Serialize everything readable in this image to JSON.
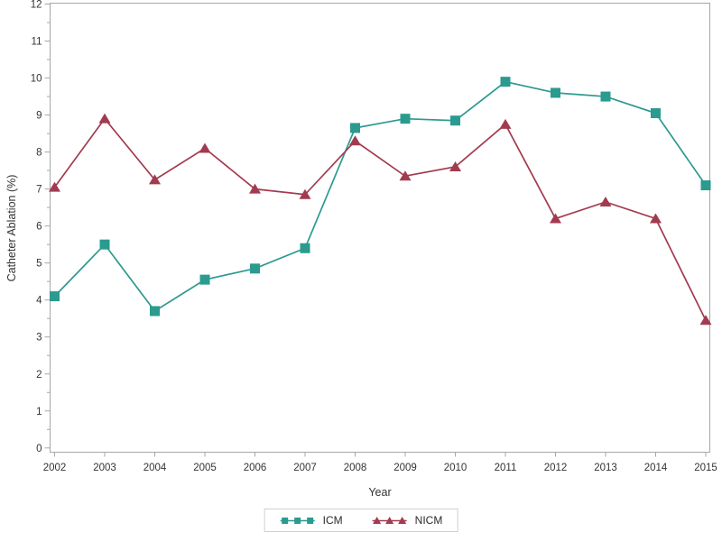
{
  "figure": {
    "background": "#ffffff"
  },
  "chart_data": {
    "type": "line",
    "title": "",
    "xlabel": "Year",
    "ylabel": "Catheter Ablation (%)",
    "x": [
      2002,
      2003,
      2004,
      2005,
      2006,
      2007,
      2008,
      2009,
      2010,
      2011,
      2012,
      2013,
      2014,
      2015
    ],
    "ylim": [
      0,
      12
    ],
    "yticks": [
      0,
      1,
      2,
      3,
      4,
      5,
      6,
      7,
      8,
      9,
      10,
      11,
      12
    ],
    "minor_ytick_interval": 0.5,
    "grid": false,
    "legend": {
      "position": "bottom-center",
      "entries": [
        "ICM",
        "NICM"
      ]
    },
    "series": [
      {
        "name": "ICM",
        "marker": "square",
        "color": "#2B9A8F",
        "values": [
          4.1,
          5.5,
          3.7,
          4.55,
          4.85,
          5.4,
          8.65,
          8.9,
          8.85,
          9.9,
          9.6,
          9.5,
          9.05,
          7.1
        ]
      },
      {
        "name": "NICM",
        "marker": "triangle",
        "color": "#A23B4F",
        "values": [
          7.05,
          8.9,
          7.25,
          8.1,
          7.0,
          6.85,
          8.3,
          7.35,
          7.6,
          8.75,
          6.2,
          6.65,
          6.2,
          3.45
        ]
      }
    ],
    "colors": {
      "axis": "#A3A8AB",
      "tick_text": "#333333",
      "legend_border": "#D0D0D0"
    }
  }
}
